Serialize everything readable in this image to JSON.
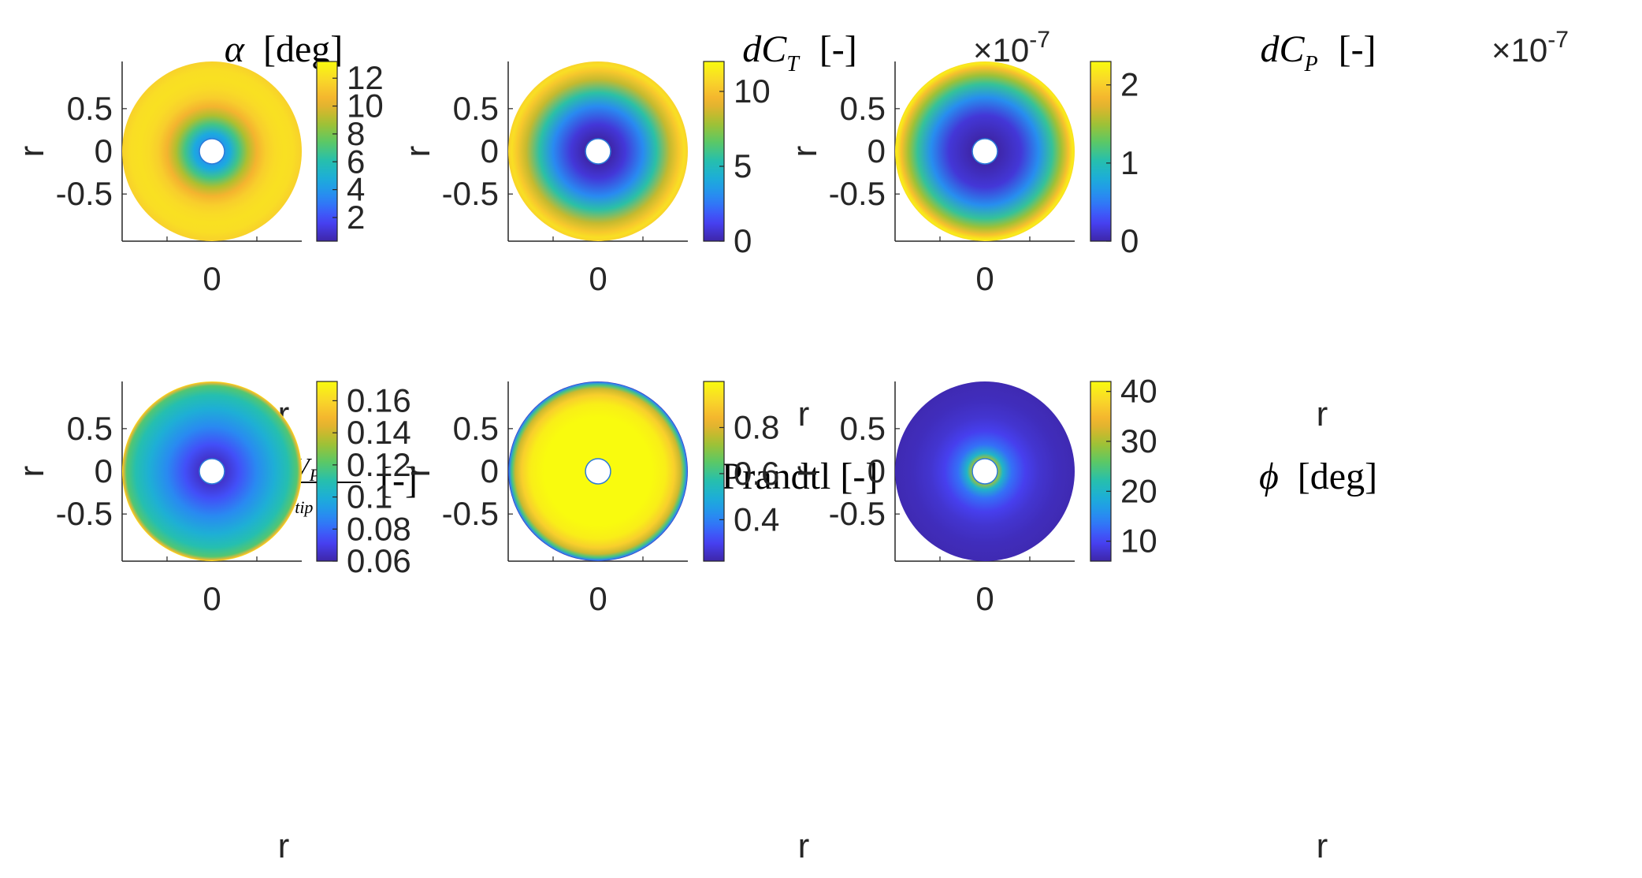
{
  "figure": {
    "description_free": true
  },
  "colormap": {
    "name": "parula",
    "stops": [
      "#3e26a8",
      "#4743f8",
      "#2d7ff7",
      "#1caadf",
      "#24bfb0",
      "#5dc863",
      "#aac02f",
      "#f3b02f",
      "#f9d52b",
      "#f9fb0e"
    ]
  },
  "chart_data": [
    {
      "type": "heatmap",
      "id": "alpha",
      "title_symbol": "α",
      "title_unit": "[deg]",
      "xlabel": "r",
      "ylabel": "r",
      "xticks": [
        "0"
      ],
      "yticks": [
        "0.5",
        "0",
        "-0.5"
      ],
      "ytick_values": [
        0.5,
        0,
        -0.5
      ],
      "xlim": [
        -1,
        1
      ],
      "ylim": [
        -1,
        1
      ],
      "inner_radius": 0.14,
      "colorbar": {
        "ticks": [
          "12",
          "10",
          "8",
          "6",
          "4",
          "2"
        ],
        "tick_values": [
          12,
          10,
          8,
          6,
          4,
          2
        ],
        "clim": [
          0.3,
          13.2
        ],
        "exponent": ""
      },
      "radial_profile": [
        [
          0.14,
          4.0
        ],
        [
          0.2,
          4.6
        ],
        [
          0.3,
          6.8
        ],
        [
          0.4,
          9.0
        ],
        [
          0.5,
          10.5
        ],
        [
          0.6,
          11.5
        ],
        [
          0.7,
          12.0
        ],
        [
          0.8,
          12.2
        ],
        [
          0.9,
          12.1
        ],
        [
          1.0,
          11.6
        ]
      ]
    },
    {
      "type": "heatmap",
      "id": "dCT",
      "title_symbol": "dC",
      "title_sub": "T",
      "title_unit": "[-]",
      "xlabel": "",
      "ylabel": "r",
      "xticks": [
        "0"
      ],
      "yticks": [
        "0.5",
        "0",
        "-0.5"
      ],
      "ytick_values": [
        0.5,
        0,
        -0.5
      ],
      "xlim": [
        -1,
        1
      ],
      "ylim": [
        -1,
        1
      ],
      "inner_radius": 0.14,
      "colorbar": {
        "ticks": [
          "10",
          "5",
          "0"
        ],
        "tick_values": [
          10,
          5,
          0
        ],
        "clim": [
          0,
          12
        ],
        "exponent": "-7",
        "multiplier": "×10"
      },
      "radial_profile": [
        [
          0.14,
          0.0
        ],
        [
          0.3,
          0.8
        ],
        [
          0.5,
          3.0
        ],
        [
          0.65,
          5.5
        ],
        [
          0.8,
          8.5
        ],
        [
          0.9,
          10.2
        ],
        [
          0.96,
          11.0
        ],
        [
          1.0,
          10.6
        ]
      ]
    },
    {
      "type": "heatmap",
      "id": "dCP",
      "title_symbol": "dC",
      "title_sub": "P",
      "title_unit": "[-]",
      "xlabel": "",
      "ylabel": "r",
      "xticks": [
        "0"
      ],
      "yticks": [
        "0.5",
        "0",
        "-0.5"
      ],
      "ytick_values": [
        0.5,
        0,
        -0.5
      ],
      "xlim": [
        -1,
        1
      ],
      "ylim": [
        -1,
        1
      ],
      "inner_radius": 0.14,
      "colorbar": {
        "ticks": [
          "2",
          "1",
          "0"
        ],
        "tick_values": [
          2,
          1,
          0
        ],
        "clim": [
          0,
          2.3
        ],
        "exponent": "-7",
        "multiplier": "×10"
      },
      "radial_profile": [
        [
          0.14,
          0.0
        ],
        [
          0.4,
          0.15
        ],
        [
          0.6,
          0.6
        ],
        [
          0.75,
          1.1
        ],
        [
          0.85,
          1.5
        ],
        [
          0.93,
          1.9
        ],
        [
          0.98,
          2.2
        ],
        [
          1.0,
          2.1
        ]
      ]
    },
    {
      "type": "heatmap",
      "id": "lambda",
      "title_text": "λu = (vu+VP)/vtip [-]",
      "xlabel": "r",
      "ylabel": "r",
      "xticks": [
        "0"
      ],
      "yticks": [
        "0.5",
        "0",
        "-0.5"
      ],
      "ytick_values": [
        0.5,
        0,
        -0.5
      ],
      "xlim": [
        -1,
        1
      ],
      "ylim": [
        -1,
        1
      ],
      "inner_radius": 0.14,
      "colorbar": {
        "ticks": [
          "0.16",
          "0.14",
          "0.12",
          "0.1",
          "0.08",
          "0.06"
        ],
        "tick_values": [
          0.16,
          0.14,
          0.12,
          0.1,
          0.08,
          0.06
        ],
        "clim": [
          0.06,
          0.172
        ],
        "exponent": ""
      },
      "radial_profile": [
        [
          0.14,
          0.065
        ],
        [
          0.3,
          0.075
        ],
        [
          0.5,
          0.088
        ],
        [
          0.7,
          0.1
        ],
        [
          0.85,
          0.11
        ],
        [
          0.95,
          0.12
        ],
        [
          0.99,
          0.15
        ],
        [
          1.0,
          0.168
        ]
      ]
    },
    {
      "type": "heatmap",
      "id": "prandtl",
      "title_text": "Prandtl [-]",
      "xlabel": "r",
      "ylabel": "r",
      "xticks": [
        "0"
      ],
      "yticks": [
        "0.5",
        "0",
        "-0.5"
      ],
      "ytick_values": [
        0.5,
        0,
        -0.5
      ],
      "xlim": [
        -1,
        1
      ],
      "ylim": [
        -1,
        1
      ],
      "inner_radius": 0.14,
      "colorbar": {
        "ticks": [
          "0.8",
          "0.6",
          "0.4"
        ],
        "tick_values": [
          0.8,
          0.6,
          0.4
        ],
        "clim": [
          0.22,
          1.0
        ],
        "exponent": ""
      },
      "radial_profile": [
        [
          0.14,
          1.0
        ],
        [
          0.6,
          1.0
        ],
        [
          0.75,
          0.97
        ],
        [
          0.85,
          0.9
        ],
        [
          0.92,
          0.78
        ],
        [
          0.96,
          0.62
        ],
        [
          0.99,
          0.4
        ],
        [
          1.0,
          0.22
        ]
      ]
    },
    {
      "type": "heatmap",
      "id": "phi",
      "title_symbol": "ϕ",
      "title_unit": "[deg]",
      "xlabel": "r",
      "ylabel": "r",
      "xticks": [
        "0"
      ],
      "yticks": [
        "0.5",
        "0",
        "-0.5"
      ],
      "ytick_values": [
        0.5,
        0,
        -0.5
      ],
      "xlim": [
        -1,
        1
      ],
      "ylim": [
        -1,
        1
      ],
      "inner_radius": 0.14,
      "colorbar": {
        "ticks": [
          "40",
          "30",
          "20",
          "10"
        ],
        "tick_values": [
          40,
          30,
          20,
          10
        ],
        "clim": [
          6,
          42
        ],
        "exponent": ""
      },
      "radial_profile": [
        [
          0.14,
          30.0
        ],
        [
          0.2,
          20.0
        ],
        [
          0.3,
          13.0
        ],
        [
          0.45,
          9.5
        ],
        [
          0.6,
          8.0
        ],
        [
          0.8,
          7.0
        ],
        [
          1.0,
          6.5
        ]
      ]
    }
  ]
}
